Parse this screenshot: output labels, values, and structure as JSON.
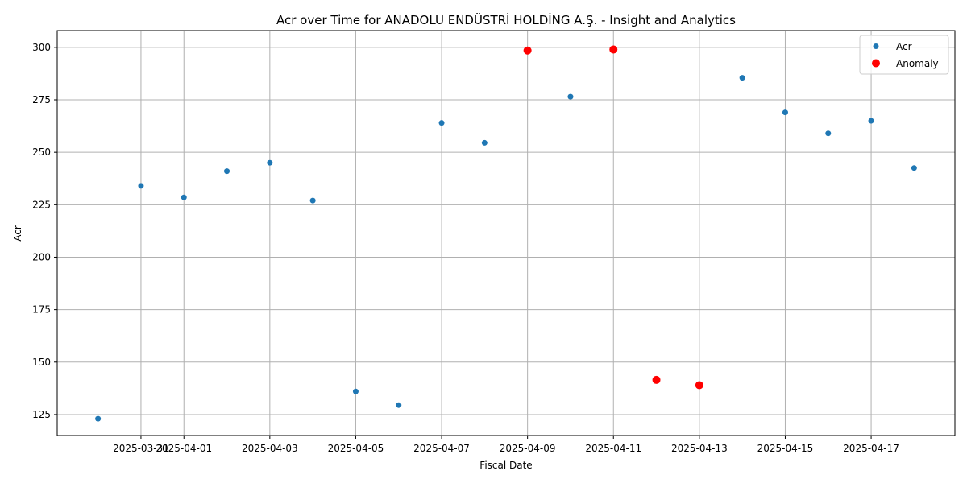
{
  "chart_data": {
    "type": "scatter",
    "title": "Acr over Time for ANADOLU ENDÜSTRİ HOLDİNG A.Ş. - Insight and Analytics",
    "xlabel": "Fiscal Date",
    "ylabel": "Acr",
    "x_range": [
      "2025-03-30",
      "2025-04-18"
    ],
    "ylim": [
      115,
      308
    ],
    "x_ticks": [
      "2025-03-31",
      "2025-04-01",
      "2025-04-03",
      "2025-04-05",
      "2025-04-07",
      "2025-04-09",
      "2025-04-11",
      "2025-04-13",
      "2025-04-15",
      "2025-04-17"
    ],
    "y_ticks": [
      125,
      150,
      175,
      200,
      225,
      250,
      275,
      300
    ],
    "grid": true,
    "legend_position": "top-right",
    "series": [
      {
        "name": "Acr",
        "color": "#1f77b4",
        "points": [
          {
            "x": "2025-03-30",
            "y": 123
          },
          {
            "x": "2025-03-31",
            "y": 234
          },
          {
            "x": "2025-04-01",
            "y": 228.5
          },
          {
            "x": "2025-04-02",
            "y": 241
          },
          {
            "x": "2025-04-03",
            "y": 245
          },
          {
            "x": "2025-04-04",
            "y": 227
          },
          {
            "x": "2025-04-05",
            "y": 136
          },
          {
            "x": "2025-04-06",
            "y": 129.5
          },
          {
            "x": "2025-04-07",
            "y": 264
          },
          {
            "x": "2025-04-08",
            "y": 254.5
          },
          {
            "x": "2025-04-09",
            "y": 298.5
          },
          {
            "x": "2025-04-10",
            "y": 276.5
          },
          {
            "x": "2025-04-11",
            "y": 299
          },
          {
            "x": "2025-04-12",
            "y": 141.5
          },
          {
            "x": "2025-04-13",
            "y": 139
          },
          {
            "x": "2025-04-14",
            "y": 285.5
          },
          {
            "x": "2025-04-15",
            "y": 269
          },
          {
            "x": "2025-04-16",
            "y": 259
          },
          {
            "x": "2025-04-17",
            "y": 265
          },
          {
            "x": "2025-04-18",
            "y": 242.5
          }
        ]
      },
      {
        "name": "Anomaly",
        "color": "#ff0000",
        "points": [
          {
            "x": "2025-04-09",
            "y": 298.5
          },
          {
            "x": "2025-04-11",
            "y": 299
          },
          {
            "x": "2025-04-12",
            "y": 141.5
          },
          {
            "x": "2025-04-13",
            "y": 139
          }
        ]
      }
    ]
  }
}
